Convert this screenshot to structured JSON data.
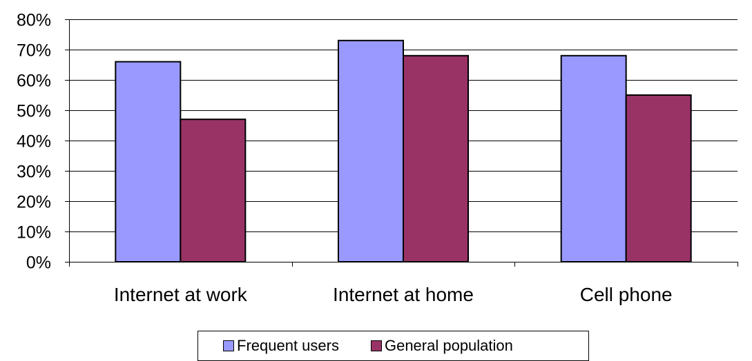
{
  "chart_data": {
    "type": "bar",
    "title": "",
    "xlabel": "",
    "ylabel": "",
    "categories": [
      "Internet at work",
      "Internet at home",
      "Cell phone"
    ],
    "series": [
      {
        "name": "Frequent users",
        "values": [
          66,
          73,
          68
        ],
        "color": "#9999FF"
      },
      {
        "name": "General population",
        "values": [
          47,
          68,
          55
        ],
        "color": "#993366"
      }
    ],
    "ylim": [
      0,
      80
    ],
    "yticks": [
      0,
      10,
      20,
      30,
      40,
      50,
      60,
      70,
      80
    ],
    "ytick_labels": [
      "0%",
      "10%",
      "20%",
      "30%",
      "40%",
      "50%",
      "60%",
      "70%",
      "80%"
    ],
    "grid": true,
    "legend_position": "bottom"
  }
}
